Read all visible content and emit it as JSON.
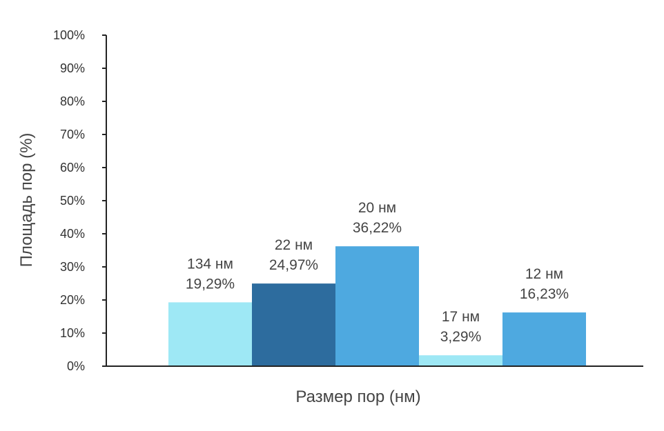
{
  "chart_data": {
    "type": "bar",
    "title": "",
    "xlabel": "Размер пор (нм)",
    "ylabel": "Площадь пор (%)",
    "ylim": [
      0,
      100
    ],
    "yticks": [
      "0%",
      "10%",
      "20%",
      "30%",
      "40%",
      "50%",
      "60%",
      "70%",
      "80%",
      "90%",
      "100%"
    ],
    "grid": false,
    "legend": "none",
    "bars": [
      {
        "size_label": "134 нм",
        "value_label": "19,29%",
        "value": 19.29,
        "color": "#9EE8F5"
      },
      {
        "size_label": "22 нм",
        "value_label": "24,97%",
        "value": 24.97,
        "color": "#2D6C9E"
      },
      {
        "size_label": "20 нм",
        "value_label": "36,22%",
        "value": 36.22,
        "color": "#4EA9E0"
      },
      {
        "size_label": "17 нм",
        "value_label": "3,29%",
        "value": 3.29,
        "color": "#9EE8F5"
      },
      {
        "size_label": "12 нм",
        "value_label": "16,23%",
        "value": 16.23,
        "color": "#4EA9E0"
      }
    ]
  }
}
